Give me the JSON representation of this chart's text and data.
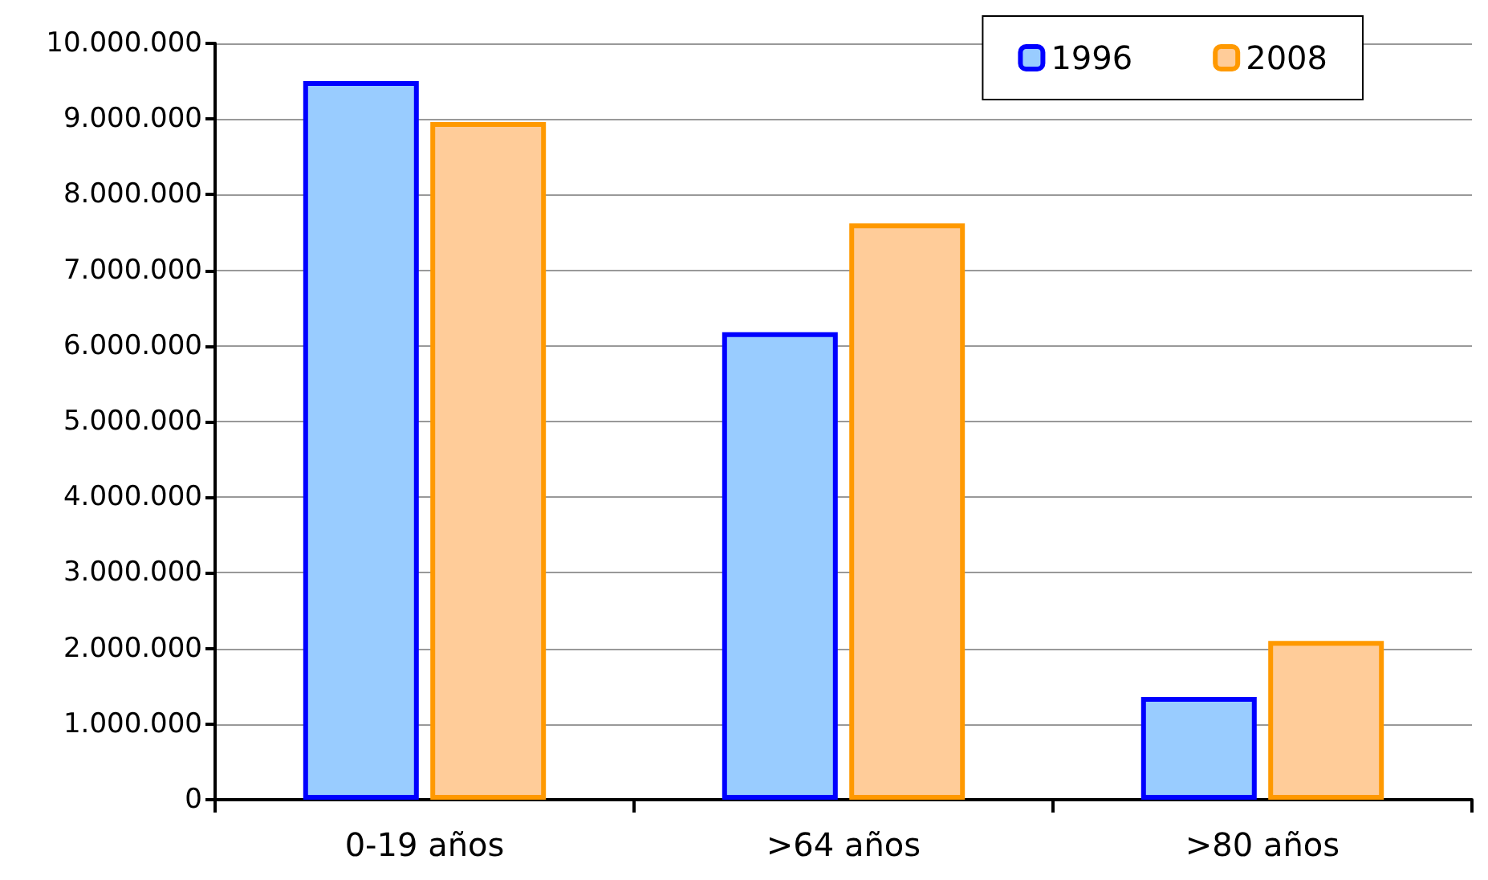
{
  "chart_data": {
    "type": "bar",
    "categories": [
      "0-19 años",
      ">64 años",
      ">80 años"
    ],
    "series": [
      {
        "name": "1996",
        "color": "#99ccff",
        "values": [
          9500000,
          6180000,
          1360000
        ]
      },
      {
        "name": "2008",
        "color": "#ffcc99",
        "values": [
          8960000,
          7620000,
          2100000
        ]
      }
    ],
    "ylim": [
      0,
      10000000
    ],
    "yticks": [
      {
        "value": 0,
        "label": "0"
      },
      {
        "value": 1000000,
        "label": "1.000.000"
      },
      {
        "value": 2000000,
        "label": "2.000.000"
      },
      {
        "value": 3000000,
        "label": "3.000.000"
      },
      {
        "value": 4000000,
        "label": "4.000.000"
      },
      {
        "value": 5000000,
        "label": "5.000.000"
      },
      {
        "value": 6000000,
        "label": "6.000.000"
      },
      {
        "value": 7000000,
        "label": "7.000.000"
      },
      {
        "value": 8000000,
        "label": "8.000.000"
      },
      {
        "value": 9000000,
        "label": "9.000.000"
      },
      {
        "value": 10000000,
        "label": "10.000.000"
      }
    ],
    "grid": "y",
    "legend": "top right"
  }
}
